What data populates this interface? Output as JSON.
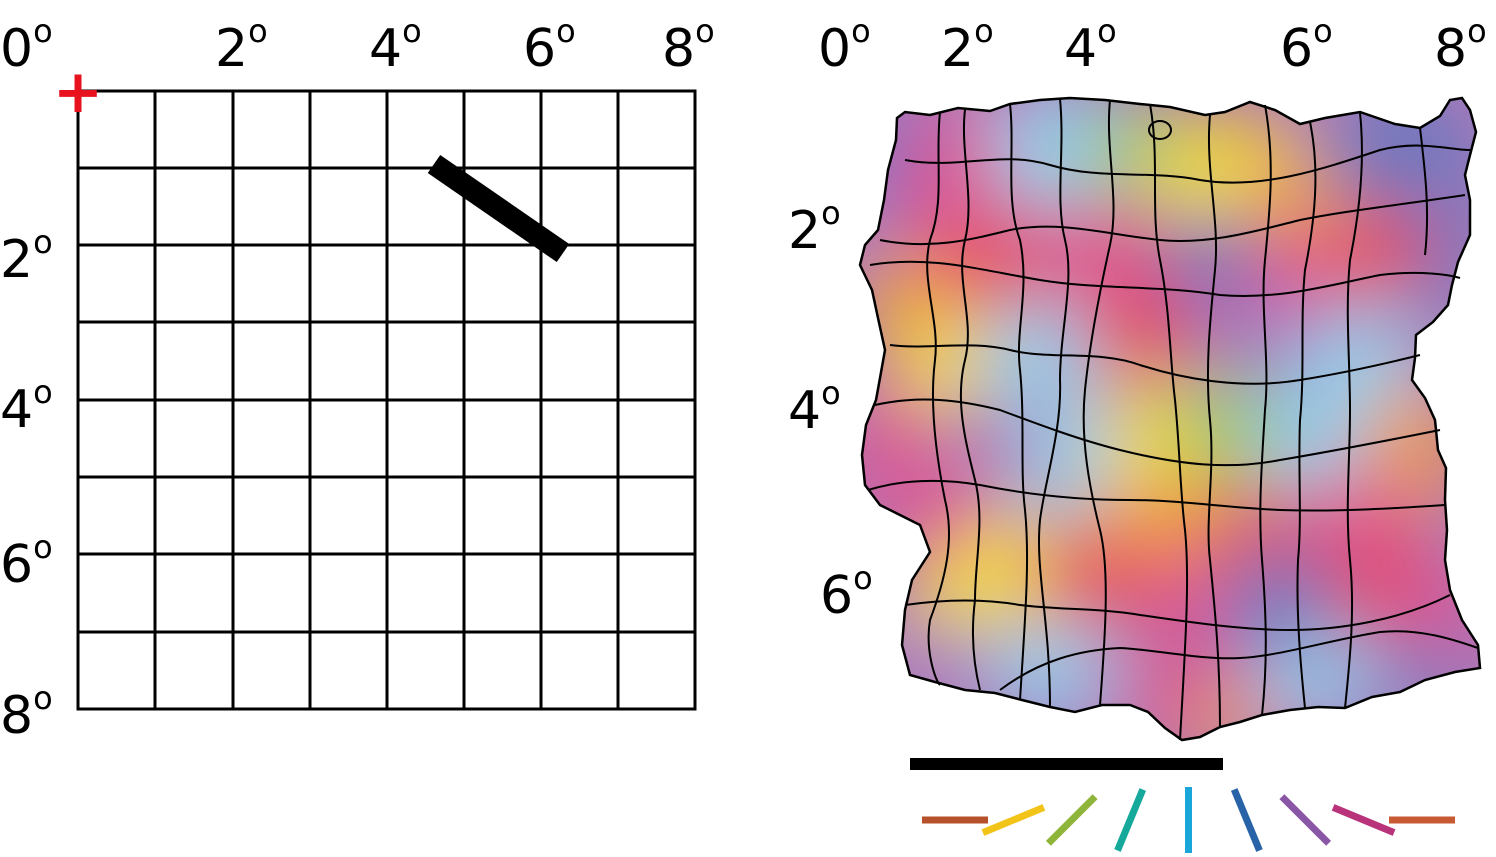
{
  "left_panel": {
    "x_ticks": [
      "0",
      "2",
      "4",
      "6",
      "8"
    ],
    "y_ticks": [
      "2",
      "4",
      "6",
      "8"
    ],
    "degree_symbol": "o",
    "fixation_marker": "+",
    "fixation_color": "#e8121e",
    "stimulus_bar_color": "#000000"
  },
  "right_panel": {
    "x_ticks": [
      "0",
      "2",
      "4",
      "6",
      "8"
    ],
    "y_ticks": [
      "2",
      "4",
      "6"
    ],
    "degree_symbol": "o",
    "scale_bar_color": "#000000"
  },
  "orientation_legend": {
    "angles": [
      0,
      22.5,
      45,
      67.5,
      90,
      112.5,
      135,
      157.5,
      180
    ],
    "colors": [
      "#b5522b",
      "#f2c417",
      "#8fb43a",
      "#14a99a",
      "#1ba6d9",
      "#2863a8",
      "#8a56a6",
      "#b8337a",
      "#c75a32"
    ]
  },
  "map_colors": {
    "magenta": "#e0508f",
    "red": "#e74b5a",
    "yellow": "#f7e31c",
    "orange": "#f2a23a",
    "cyan": "#8fd2ef",
    "blue": "#6a78c0",
    "violet": "#a77ac2",
    "green": "#9cca6a"
  }
}
